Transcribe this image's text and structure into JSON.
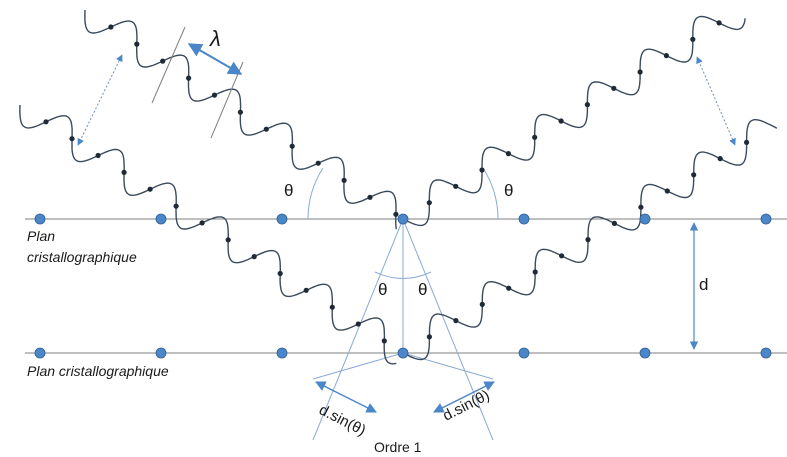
{
  "labels": {
    "plane_top": [
      "Plan",
      "cristallographique"
    ],
    "plane_bottom": "Plan cristallographique",
    "wavelength": "λ",
    "theta": "θ",
    "spacing": "d",
    "path_left": "d.sin(θ)",
    "path_right": "d.sin(θ)",
    "order": "Ordre 1"
  },
  "colors": {
    "atom": "#4a86c8",
    "atom_stroke": "#2e5f95",
    "plane": "#7f7f7f",
    "wave": "#3b4a5c",
    "ray": "#8aaad6",
    "arrow": "#4a86c8",
    "text": "#1a1a1a"
  }
}
